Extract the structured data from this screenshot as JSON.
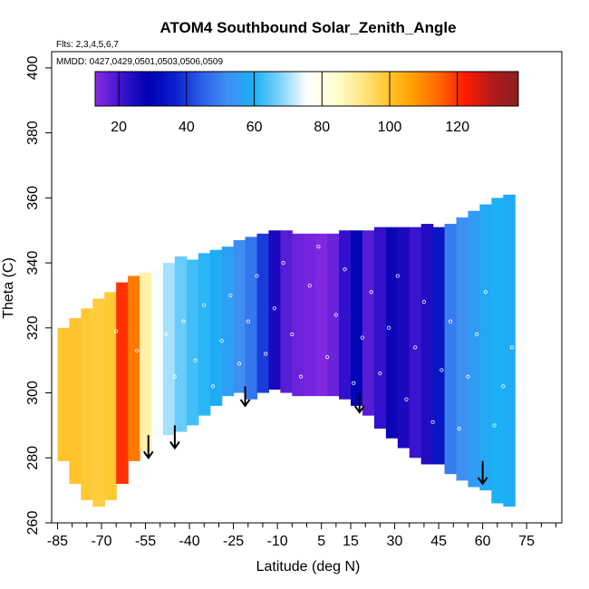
{
  "chart_data": {
    "type": "heatmap",
    "title": "ATOM4 Southbound Solar_Zenith_Angle",
    "flights_note": "Flts: 2,3,4,5,6,7",
    "dates_note": "MMDD: 0427,0429,0501,0503,0506,0509",
    "xlabel": "Latitude (deg N)",
    "ylabel": "Theta (C)",
    "xlim": [
      -87,
      87
    ],
    "ylim": [
      260,
      405
    ],
    "x_ticks": [
      -85,
      -70,
      -55,
      -40,
      -25,
      -10,
      5,
      15,
      30,
      45,
      60,
      75
    ],
    "x_minor_ticks": [
      -80,
      -75,
      -65,
      -60,
      -50,
      -45,
      -35,
      -30,
      -20,
      -15,
      -5,
      0,
      10,
      20,
      25,
      35,
      40,
      50,
      55,
      65,
      70,
      80,
      85
    ],
    "y_ticks": [
      260,
      280,
      300,
      320,
      340,
      360,
      380,
      400
    ],
    "grid": false,
    "colorbar": {
      "range": [
        13,
        138
      ],
      "ticks": [
        20,
        40,
        60,
        80,
        100,
        120
      ],
      "colors": [
        "#8a2be2",
        "#3a14d0",
        "#0000b0",
        "#0a1ecf",
        "#2a5ee8",
        "#3f8ff2",
        "#1ab0f5",
        "#7fd3fb",
        "#ffffff",
        "#ffffd8",
        "#ffe88a",
        "#ffc933",
        "#ffa000",
        "#ff6600",
        "#ff1a00",
        "#b01a1a",
        "#8b1f1f"
      ]
    },
    "field": {
      "lat_centers": [
        -83,
        -79,
        -75,
        -71,
        -67,
        -63,
        -59,
        -55,
        -51,
        -47,
        -43,
        -39,
        -35,
        -31,
        -27,
        -23,
        -19,
        -15,
        -11,
        -7,
        -3,
        1,
        5,
        9,
        13,
        17,
        21,
        25,
        29,
        33,
        37,
        41,
        45,
        49,
        53,
        57,
        61,
        65,
        69
      ],
      "sza_values": [
        100,
        100,
        99,
        98,
        99,
        120,
        112,
        88,
        75,
        70,
        66,
        63,
        61,
        59,
        56,
        52,
        48,
        40,
        25,
        18,
        16,
        15,
        14,
        16,
        22,
        30,
        18,
        22,
        27,
        25,
        21,
        24,
        34,
        49,
        52,
        55,
        58,
        60,
        59
      ],
      "theta_top": [
        320,
        323,
        326,
        329,
        331,
        334,
        336,
        337,
        338,
        340,
        342,
        341,
        343,
        344,
        345,
        347,
        348,
        349,
        350,
        350,
        349,
        349,
        349,
        349,
        350,
        350,
        350,
        351,
        351,
        351,
        351,
        352,
        351,
        352,
        354,
        356,
        358,
        360,
        361
      ],
      "theta_bottom": [
        279,
        272,
        267,
        265,
        267,
        272,
        279,
        282,
        286,
        287,
        288,
        290,
        293,
        296,
        299,
        300,
        298,
        300,
        301,
        300,
        299,
        299,
        299,
        299,
        298,
        296,
        293,
        289,
        286,
        283,
        280,
        278,
        278,
        275,
        273,
        271,
        270,
        266,
        265
      ]
    },
    "observation_markers": [
      {
        "lat": -65,
        "theta": 319
      },
      {
        "lat": -58,
        "theta": 313
      },
      {
        "lat": -52,
        "theta": 325
      },
      {
        "lat": -48,
        "theta": 318
      },
      {
        "lat": -45,
        "theta": 305
      },
      {
        "lat": -42,
        "theta": 322
      },
      {
        "lat": -38,
        "theta": 310
      },
      {
        "lat": -35,
        "theta": 327
      },
      {
        "lat": -32,
        "theta": 302
      },
      {
        "lat": -29,
        "theta": 316
      },
      {
        "lat": -26,
        "theta": 330
      },
      {
        "lat": -23,
        "theta": 309
      },
      {
        "lat": -20,
        "theta": 322
      },
      {
        "lat": -17,
        "theta": 336
      },
      {
        "lat": -14,
        "theta": 312
      },
      {
        "lat": -11,
        "theta": 326
      },
      {
        "lat": -8,
        "theta": 340
      },
      {
        "lat": -5,
        "theta": 318
      },
      {
        "lat": -2,
        "theta": 305
      },
      {
        "lat": 1,
        "theta": 333
      },
      {
        "lat": 4,
        "theta": 345
      },
      {
        "lat": 7,
        "theta": 311
      },
      {
        "lat": 10,
        "theta": 324
      },
      {
        "lat": 13,
        "theta": 338
      },
      {
        "lat": 16,
        "theta": 303
      },
      {
        "lat": 19,
        "theta": 317
      },
      {
        "lat": 22,
        "theta": 331
      },
      {
        "lat": 25,
        "theta": 306
      },
      {
        "lat": 28,
        "theta": 320
      },
      {
        "lat": 31,
        "theta": 336
      },
      {
        "lat": 34,
        "theta": 298
      },
      {
        "lat": 37,
        "theta": 314
      },
      {
        "lat": 40,
        "theta": 328
      },
      {
        "lat": 43,
        "theta": 291
      },
      {
        "lat": 46,
        "theta": 307
      },
      {
        "lat": 49,
        "theta": 322
      },
      {
        "lat": 52,
        "theta": 289
      },
      {
        "lat": 55,
        "theta": 305
      },
      {
        "lat": 58,
        "theta": 318
      },
      {
        "lat": 61,
        "theta": 331
      },
      {
        "lat": 64,
        "theta": 290
      },
      {
        "lat": 67,
        "theta": 302
      },
      {
        "lat": 70,
        "theta": 314
      },
      {
        "lat": 72,
        "theta": 287
      },
      {
        "lat": 72,
        "theta": 326
      }
    ],
    "flight_arrows": [
      {
        "lat": -54,
        "theta_start": 287,
        "theta_end": 280
      },
      {
        "lat": -45,
        "theta_start": 290,
        "theta_end": 283
      },
      {
        "lat": -21,
        "theta_start": 302,
        "theta_end": 296
      },
      {
        "lat": 18,
        "theta_start": 300,
        "theta_end": 294
      },
      {
        "lat": 60,
        "theta_start": 279,
        "theta_end": 272
      }
    ]
  }
}
